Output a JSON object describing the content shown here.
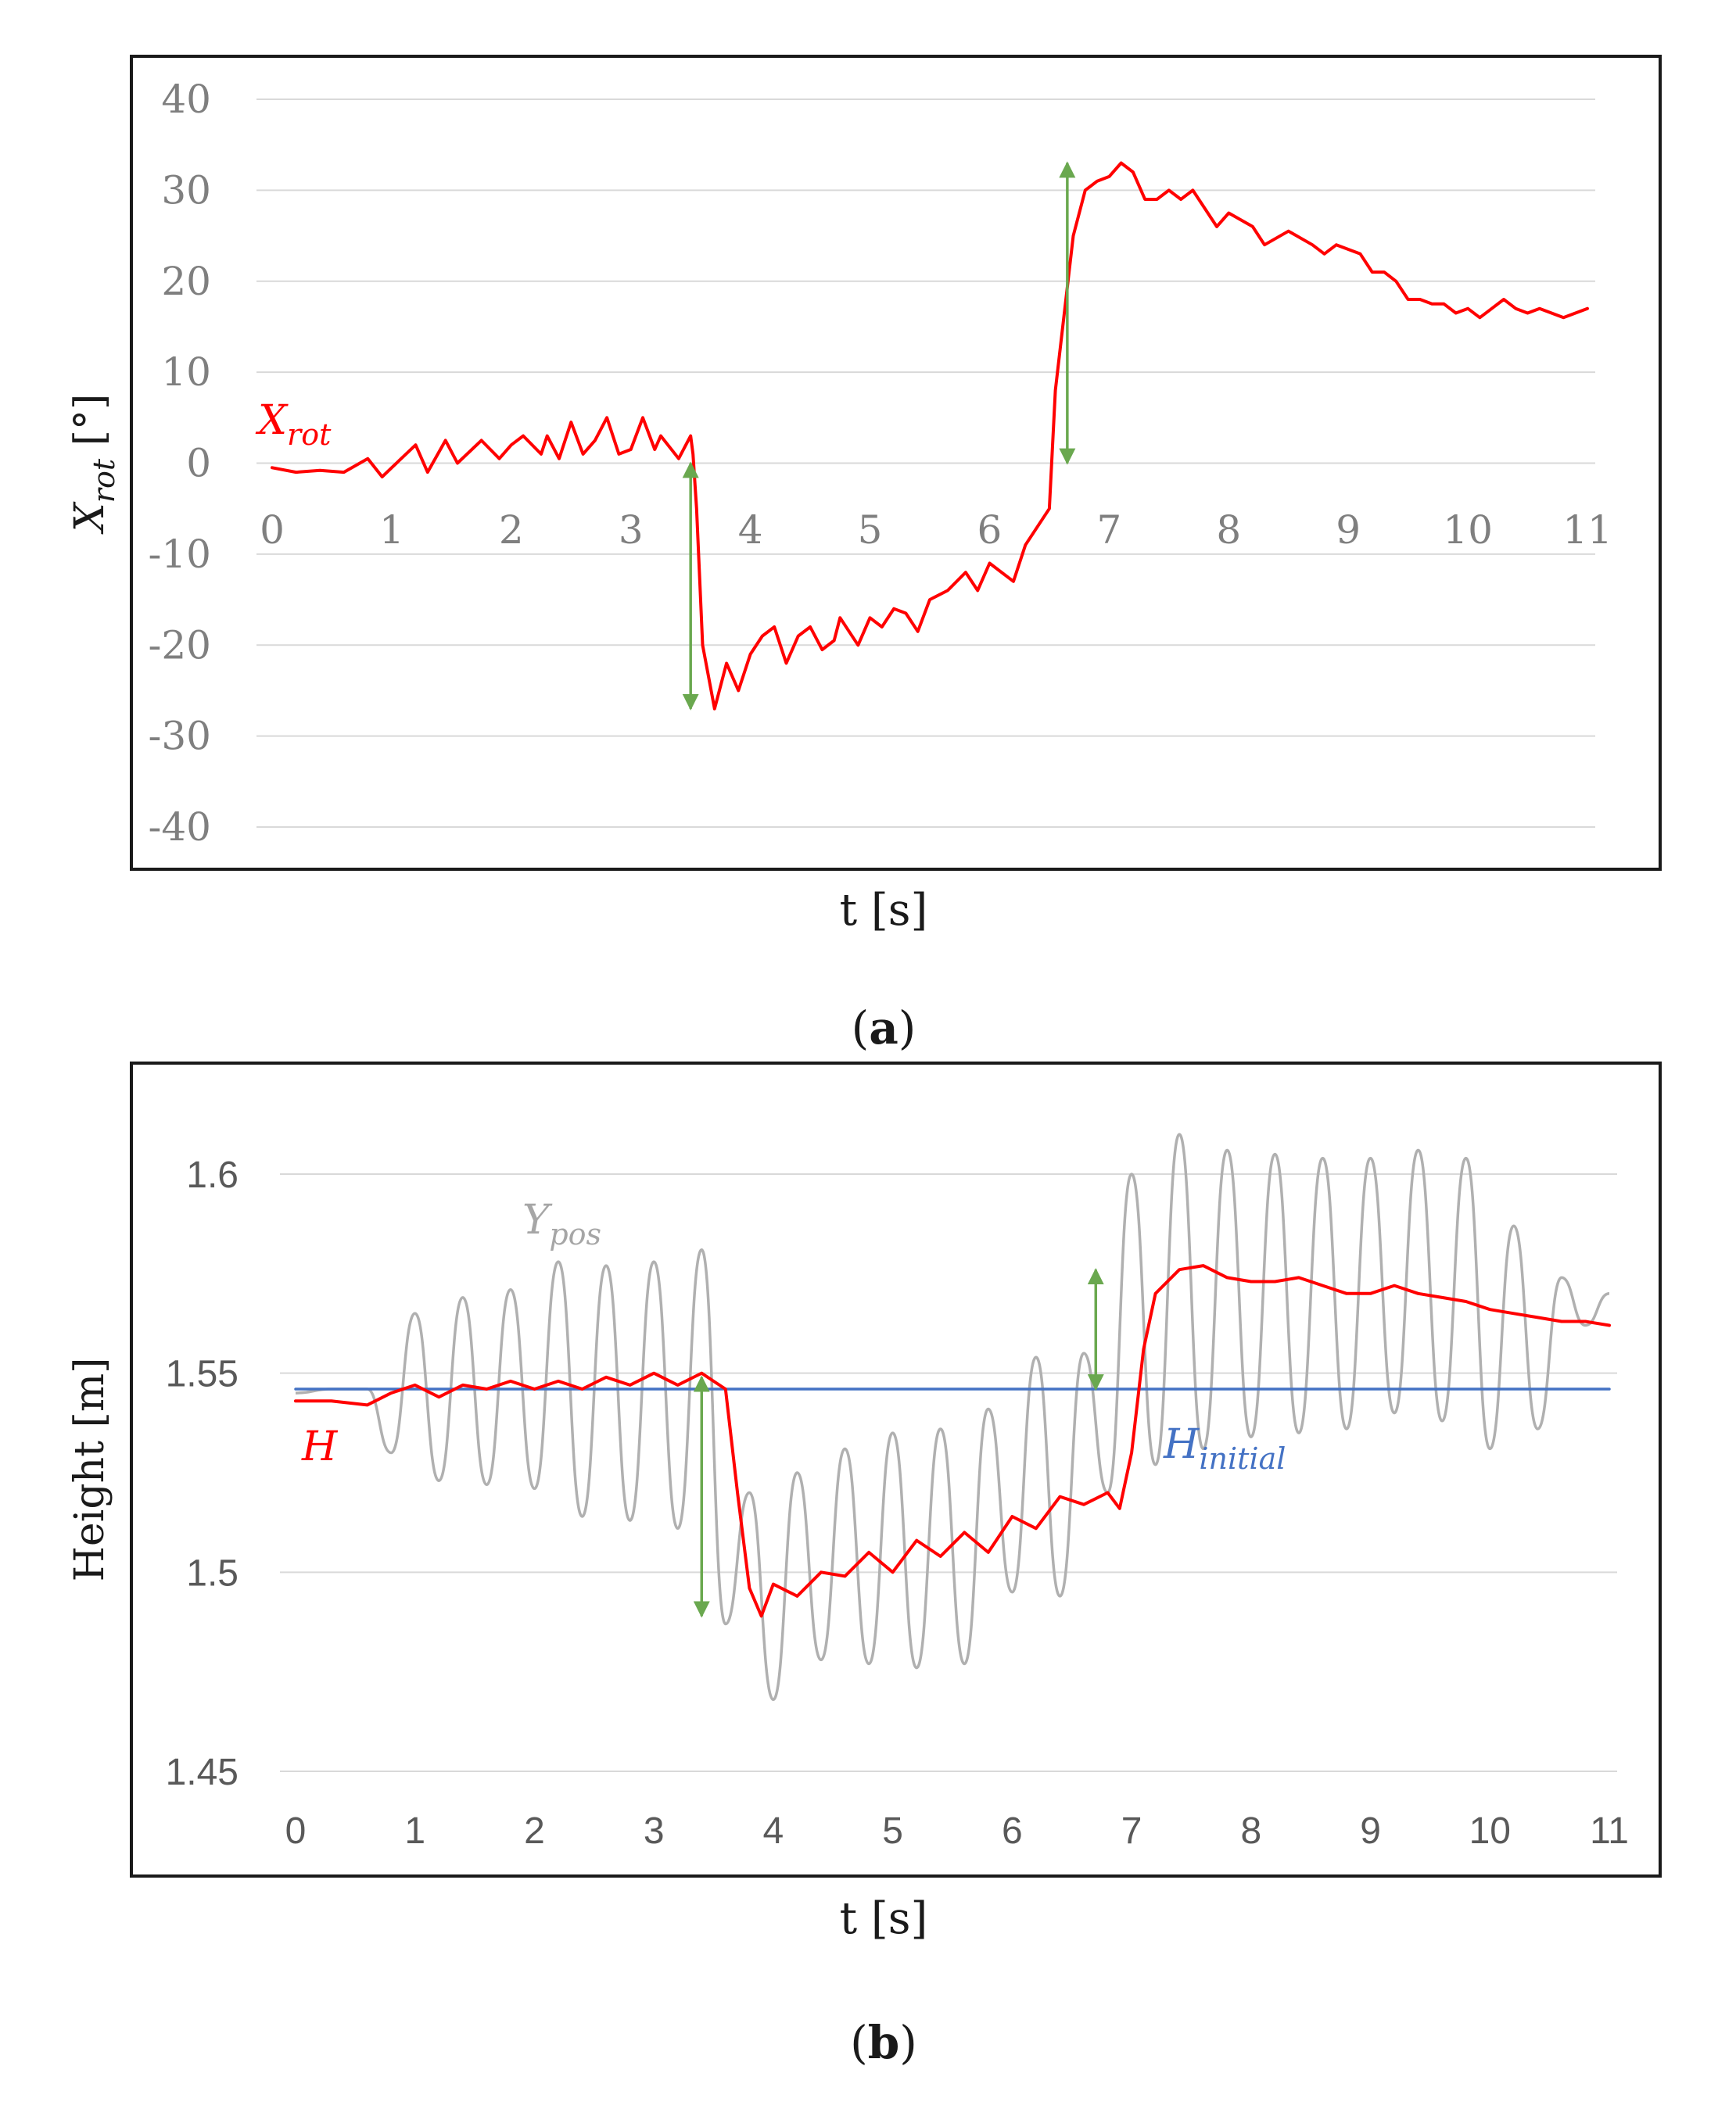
{
  "chart_data": [
    {
      "type": "line",
      "caption": "(a)",
      "caption_letter": "a",
      "xlabel": "t [s]",
      "ylabel": "X",
      "ylabel_sub": "rot",
      "ylabel_unit": " [°]",
      "xlim": [
        0,
        11
      ],
      "ylim": [
        -40,
        40
      ],
      "xticks": [
        "0",
        "1",
        "2",
        "3",
        "4",
        "5",
        "6",
        "7",
        "8",
        "9",
        "10",
        "11"
      ],
      "yticks": [
        "40",
        "30",
        "20",
        "10",
        "0",
        "-10",
        "-20",
        "-30",
        "-40"
      ],
      "grid": true,
      "series": [
        {
          "name": "X_rot",
          "label_main": "X",
          "label_sub": "rot",
          "color": "#ff0000",
          "x": [
            0,
            0.2,
            0.4,
            0.6,
            0.8,
            0.92,
            1.0,
            1.2,
            1.3,
            1.45,
            1.55,
            1.75,
            1.9,
            2.0,
            2.1,
            2.25,
            2.3,
            2.4,
            2.5,
            2.6,
            2.7,
            2.8,
            2.9,
            3.0,
            3.1,
            3.2,
            3.25,
            3.4,
            3.5,
            3.52,
            3.55,
            3.6,
            3.7,
            3.8,
            3.9,
            4.0,
            4.1,
            4.2,
            4.3,
            4.4,
            4.5,
            4.6,
            4.7,
            4.75,
            4.9,
            5.0,
            5.1,
            5.2,
            5.3,
            5.4,
            5.5,
            5.65,
            5.8,
            5.9,
            6.0,
            6.2,
            6.3,
            6.5,
            6.55,
            6.7,
            6.8,
            6.9,
            7.0,
            7.1,
            7.2,
            7.3,
            7.4,
            7.5,
            7.6,
            7.7,
            7.8,
            7.9,
            8.0,
            8.2,
            8.3,
            8.5,
            8.7,
            8.8,
            8.9,
            9.0,
            9.1,
            9.2,
            9.3,
            9.4,
            9.5,
            9.6,
            9.7,
            9.8,
            9.9,
            10.0,
            10.1,
            10.2,
            10.3,
            10.4,
            10.5,
            10.6,
            10.7,
            10.8,
            10.9,
            11.0
          ],
          "y": [
            -0.5,
            -1,
            -0.8,
            -1,
            0.5,
            -1.5,
            -0.5,
            2,
            -1,
            2.5,
            0,
            2.5,
            0.5,
            2,
            3,
            1,
            3,
            0.5,
            4.5,
            1,
            2.5,
            5,
            1,
            1.5,
            5,
            1.5,
            3,
            0.5,
            3,
            1,
            -5,
            -20,
            -27,
            -22,
            -25,
            -21,
            -19,
            -18,
            -22,
            -19,
            -18,
            -20.5,
            -19.5,
            -17,
            -20,
            -17,
            -18,
            -16,
            -16.5,
            -18.5,
            -15,
            -14,
            -12,
            -14,
            -11,
            -13,
            -9,
            -5,
            8,
            25,
            30,
            31,
            31.5,
            33,
            32,
            29,
            29,
            30,
            29,
            30,
            28,
            26,
            27.5,
            26,
            24,
            25.5,
            24,
            23,
            24,
            23.5,
            23,
            21,
            21,
            20,
            18,
            18,
            17.5,
            17.5,
            16.5,
            17,
            16,
            17,
            18,
            17,
            16.5,
            17,
            16.5,
            16,
            16.5,
            17
          ]
        }
      ],
      "annotations": [
        {
          "type": "double-arrow",
          "x": 3.5,
          "y_from": 0,
          "y_to": -27,
          "color": "#6aa84f"
        },
        {
          "type": "double-arrow",
          "x": 6.65,
          "y_from": 33,
          "y_to": 0,
          "color": "#6aa84f"
        }
      ]
    },
    {
      "type": "line",
      "caption": "(b)",
      "caption_letter": "b",
      "xlabel": "t [s]",
      "ylabel": "Height [m]",
      "xlim": [
        0,
        11
      ],
      "ylim": [
        1.45,
        1.6
      ],
      "xticks": [
        "0",
        "1",
        "2",
        "3",
        "4",
        "5",
        "6",
        "7",
        "8",
        "9",
        "10",
        "11"
      ],
      "yticks": [
        "1.6",
        "1.55",
        "1.5",
        "1.45"
      ],
      "grid": true,
      "series": [
        {
          "name": "H",
          "label_main": "H",
          "color": "#ff0000",
          "x": [
            0,
            0.3,
            0.6,
            0.8,
            1.0,
            1.2,
            1.4,
            1.6,
            1.8,
            2.0,
            2.2,
            2.4,
            2.6,
            2.8,
            3.0,
            3.2,
            3.4,
            3.5,
            3.6,
            3.7,
            3.8,
            3.9,
            4.0,
            4.2,
            4.4,
            4.6,
            4.8,
            5.0,
            5.2,
            5.4,
            5.6,
            5.8,
            6.0,
            6.2,
            6.4,
            6.6,
            6.8,
            6.9,
            7.0,
            7.1,
            7.2,
            7.4,
            7.6,
            7.8,
            8.0,
            8.2,
            8.4,
            8.6,
            8.8,
            9.0,
            9.2,
            9.4,
            9.6,
            9.8,
            10.0,
            10.2,
            10.4,
            10.6,
            10.8,
            11.0
          ],
          "y": [
            1.543,
            1.543,
            1.542,
            1.545,
            1.547,
            1.544,
            1.547,
            1.546,
            1.548,
            1.546,
            1.548,
            1.546,
            1.549,
            1.547,
            1.55,
            1.547,
            1.55,
            1.548,
            1.546,
            1.52,
            1.496,
            1.489,
            1.497,
            1.494,
            1.5,
            1.499,
            1.505,
            1.5,
            1.508,
            1.504,
            1.51,
            1.505,
            1.514,
            1.511,
            1.519,
            1.517,
            1.52,
            1.516,
            1.53,
            1.556,
            1.57,
            1.576,
            1.577,
            1.574,
            1.573,
            1.573,
            1.574,
            1.572,
            1.57,
            1.57,
            1.572,
            1.57,
            1.569,
            1.568,
            1.566,
            1.565,
            1.564,
            1.563,
            1.563,
            1.562
          ]
        },
        {
          "name": "Y_pos",
          "label_main": "Y",
          "label_sub": "pos",
          "color": "#b0b0b0",
          "x": [
            0,
            0.3,
            0.6,
            0.8,
            1.0,
            1.2,
            1.4,
            1.6,
            1.8,
            2.0,
            2.2,
            2.4,
            2.6,
            2.8,
            3.0,
            3.2,
            3.4,
            3.6,
            3.8,
            4.0,
            4.2,
            4.4,
            4.6,
            4.8,
            5.0,
            5.2,
            5.4,
            5.6,
            5.8,
            6.0,
            6.2,
            6.4,
            6.6,
            6.8,
            7.0,
            7.2,
            7.4,
            7.6,
            7.8,
            8.0,
            8.2,
            8.4,
            8.6,
            8.8,
            9.0,
            9.2,
            9.4,
            9.6,
            9.8,
            10.0,
            10.2,
            10.4,
            10.6,
            10.8,
            11.0
          ],
          "y": [
            1.545,
            1.546,
            1.546,
            1.53,
            1.565,
            1.523,
            1.569,
            1.522,
            1.571,
            1.521,
            1.578,
            1.514,
            1.577,
            1.513,
            1.578,
            1.511,
            1.581,
            1.487,
            1.52,
            1.468,
            1.525,
            1.478,
            1.531,
            1.477,
            1.535,
            1.476,
            1.536,
            1.477,
            1.541,
            1.495,
            1.554,
            1.494,
            1.555,
            1.52,
            1.6,
            1.527,
            1.61,
            1.531,
            1.606,
            1.534,
            1.605,
            1.535,
            1.604,
            1.536,
            1.604,
            1.54,
            1.606,
            1.538,
            1.604,
            1.531,
            1.587,
            1.536,
            1.574,
            1.562,
            1.57
          ]
        },
        {
          "name": "H_initial",
          "label_main": "H",
          "label_sub": "initial",
          "color": "#4472c4",
          "x": [
            0,
            11
          ],
          "y": [
            1.546,
            1.546
          ]
        }
      ],
      "annotations": [
        {
          "type": "double-arrow",
          "x": 3.4,
          "y_from": 1.549,
          "y_to": 1.489,
          "color": "#6aa84f"
        },
        {
          "type": "double-arrow",
          "x": 6.7,
          "y_from": 1.576,
          "y_to": 1.546,
          "color": "#6aa84f"
        }
      ]
    }
  ]
}
